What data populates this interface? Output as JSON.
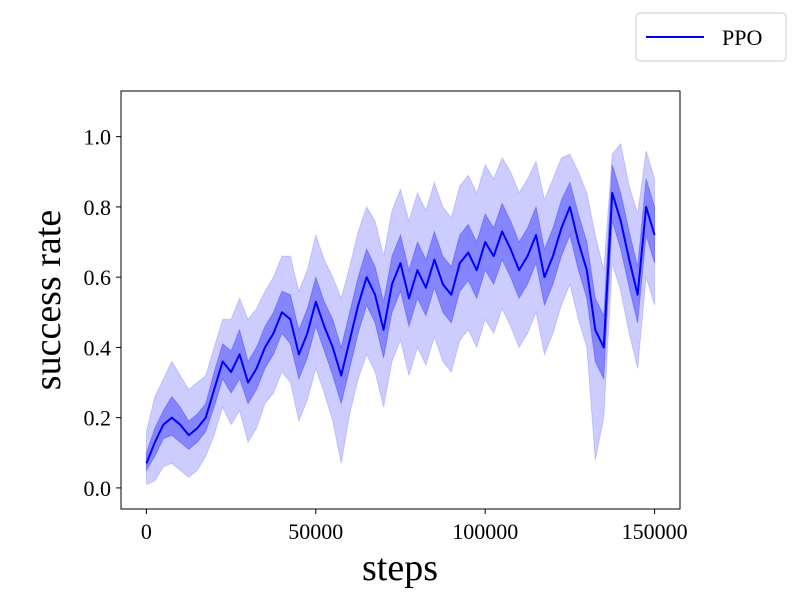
{
  "chart_data": {
    "type": "line",
    "title": "",
    "xlabel": "steps",
    "ylabel": "success rate",
    "xlim": [
      -7500,
      157500
    ],
    "ylim": [
      -0.06,
      1.13
    ],
    "xticks": [
      0,
      50000,
      100000,
      150000
    ],
    "xtick_labels": [
      "0",
      "50000",
      "100000",
      "150000"
    ],
    "yticks": [
      0.0,
      0.2,
      0.4,
      0.6,
      0.8,
      1.0
    ],
    "ytick_labels": [
      "0.0",
      "0.2",
      "0.4",
      "0.6",
      "0.8",
      "1.0"
    ],
    "grid": false,
    "legend_position": "top-right, outside plot",
    "series": [
      {
        "name": "PPO",
        "color": "#0000ff",
        "x": [
          0,
          2500,
          5000,
          7500,
          10000,
          12500,
          15000,
          17500,
          20000,
          22500,
          25000,
          27500,
          30000,
          32500,
          35000,
          37500,
          40000,
          42500,
          45000,
          47500,
          50000,
          52500,
          55000,
          57500,
          60000,
          62500,
          65000,
          67500,
          70000,
          72500,
          75000,
          77500,
          80000,
          82500,
          85000,
          87500,
          90000,
          92500,
          95000,
          97500,
          100000,
          102500,
          105000,
          107500,
          110000,
          112500,
          115000,
          117500,
          120000,
          122500,
          125000,
          127500,
          130000,
          132500,
          135000,
          137500,
          140000,
          142500,
          145000,
          147500,
          150000
        ],
        "mean": [
          0.07,
          0.13,
          0.18,
          0.2,
          0.18,
          0.15,
          0.17,
          0.2,
          0.28,
          0.36,
          0.33,
          0.38,
          0.3,
          0.34,
          0.4,
          0.44,
          0.5,
          0.48,
          0.38,
          0.44,
          0.53,
          0.46,
          0.4,
          0.32,
          0.42,
          0.52,
          0.6,
          0.55,
          0.45,
          0.58,
          0.64,
          0.54,
          0.62,
          0.57,
          0.65,
          0.58,
          0.55,
          0.64,
          0.67,
          0.62,
          0.7,
          0.66,
          0.73,
          0.68,
          0.62,
          0.66,
          0.72,
          0.6,
          0.66,
          0.74,
          0.8,
          0.7,
          0.62,
          0.45,
          0.4,
          0.84,
          0.76,
          0.65,
          0.55,
          0.8,
          0.72
        ],
        "inner_band": [
          [
            0.05,
            0.1
          ],
          [
            0.09,
            0.17
          ],
          [
            0.14,
            0.22
          ],
          [
            0.15,
            0.26
          ],
          [
            0.13,
            0.23
          ],
          [
            0.11,
            0.19
          ],
          [
            0.13,
            0.21
          ],
          [
            0.16,
            0.24
          ],
          [
            0.23,
            0.33
          ],
          [
            0.31,
            0.41
          ],
          [
            0.27,
            0.39
          ],
          [
            0.31,
            0.45
          ],
          [
            0.24,
            0.36
          ],
          [
            0.28,
            0.4
          ],
          [
            0.34,
            0.46
          ],
          [
            0.38,
            0.5
          ],
          [
            0.44,
            0.56
          ],
          [
            0.41,
            0.55
          ],
          [
            0.31,
            0.45
          ],
          [
            0.37,
            0.51
          ],
          [
            0.46,
            0.6
          ],
          [
            0.39,
            0.53
          ],
          [
            0.32,
            0.48
          ],
          [
            0.24,
            0.4
          ],
          [
            0.34,
            0.5
          ],
          [
            0.44,
            0.6
          ],
          [
            0.52,
            0.68
          ],
          [
            0.47,
            0.63
          ],
          [
            0.37,
            0.53
          ],
          [
            0.5,
            0.66
          ],
          [
            0.56,
            0.72
          ],
          [
            0.46,
            0.62
          ],
          [
            0.54,
            0.7
          ],
          [
            0.49,
            0.65
          ],
          [
            0.57,
            0.73
          ],
          [
            0.5,
            0.66
          ],
          [
            0.47,
            0.63
          ],
          [
            0.56,
            0.72
          ],
          [
            0.59,
            0.75
          ],
          [
            0.54,
            0.7
          ],
          [
            0.62,
            0.78
          ],
          [
            0.58,
            0.74
          ],
          [
            0.65,
            0.81
          ],
          [
            0.6,
            0.76
          ],
          [
            0.54,
            0.7
          ],
          [
            0.58,
            0.74
          ],
          [
            0.64,
            0.8
          ],
          [
            0.52,
            0.68
          ],
          [
            0.58,
            0.74
          ],
          [
            0.66,
            0.82
          ],
          [
            0.72,
            0.87
          ],
          [
            0.62,
            0.78
          ],
          [
            0.54,
            0.7
          ],
          [
            0.36,
            0.54
          ],
          [
            0.31,
            0.49
          ],
          [
            0.76,
            0.92
          ],
          [
            0.68,
            0.84
          ],
          [
            0.57,
            0.73
          ],
          [
            0.47,
            0.63
          ],
          [
            0.72,
            0.88
          ],
          [
            0.64,
            0.8
          ]
        ],
        "outer_band": [
          [
            0.01,
            0.16
          ],
          [
            0.02,
            0.26
          ],
          [
            0.06,
            0.31
          ],
          [
            0.07,
            0.36
          ],
          [
            0.05,
            0.32
          ],
          [
            0.03,
            0.28
          ],
          [
            0.05,
            0.3
          ],
          [
            0.09,
            0.32
          ],
          [
            0.15,
            0.4
          ],
          [
            0.23,
            0.48
          ],
          [
            0.18,
            0.48
          ],
          [
            0.22,
            0.54
          ],
          [
            0.13,
            0.48
          ],
          [
            0.17,
            0.51
          ],
          [
            0.24,
            0.56
          ],
          [
            0.27,
            0.6
          ],
          [
            0.33,
            0.66
          ],
          [
            0.3,
            0.66
          ],
          [
            0.19,
            0.56
          ],
          [
            0.25,
            0.62
          ],
          [
            0.34,
            0.72
          ],
          [
            0.27,
            0.65
          ],
          [
            0.19,
            0.6
          ],
          [
            0.07,
            0.54
          ],
          [
            0.21,
            0.63
          ],
          [
            0.31,
            0.73
          ],
          [
            0.38,
            0.8
          ],
          [
            0.33,
            0.76
          ],
          [
            0.23,
            0.66
          ],
          [
            0.36,
            0.79
          ],
          [
            0.42,
            0.85
          ],
          [
            0.32,
            0.76
          ],
          [
            0.4,
            0.84
          ],
          [
            0.35,
            0.79
          ],
          [
            0.43,
            0.87
          ],
          [
            0.36,
            0.8
          ],
          [
            0.33,
            0.77
          ],
          [
            0.42,
            0.86
          ],
          [
            0.45,
            0.89
          ],
          [
            0.4,
            0.84
          ],
          [
            0.48,
            0.92
          ],
          [
            0.44,
            0.88
          ],
          [
            0.51,
            0.94
          ],
          [
            0.46,
            0.9
          ],
          [
            0.4,
            0.84
          ],
          [
            0.44,
            0.88
          ],
          [
            0.5,
            0.93
          ],
          [
            0.38,
            0.82
          ],
          [
            0.44,
            0.88
          ],
          [
            0.52,
            0.94
          ],
          [
            0.58,
            0.95
          ],
          [
            0.48,
            0.9
          ],
          [
            0.4,
            0.84
          ],
          [
            0.08,
            0.72
          ],
          [
            0.2,
            0.62
          ],
          [
            0.64,
            0.95
          ],
          [
            0.56,
            0.98
          ],
          [
            0.44,
            0.86
          ],
          [
            0.34,
            0.78
          ],
          [
            0.6,
            0.96
          ],
          [
            0.52,
            0.88
          ]
        ]
      }
    ]
  },
  "legend": {
    "entries": [
      {
        "label": "PPO",
        "color": "#0000ff"
      }
    ]
  }
}
